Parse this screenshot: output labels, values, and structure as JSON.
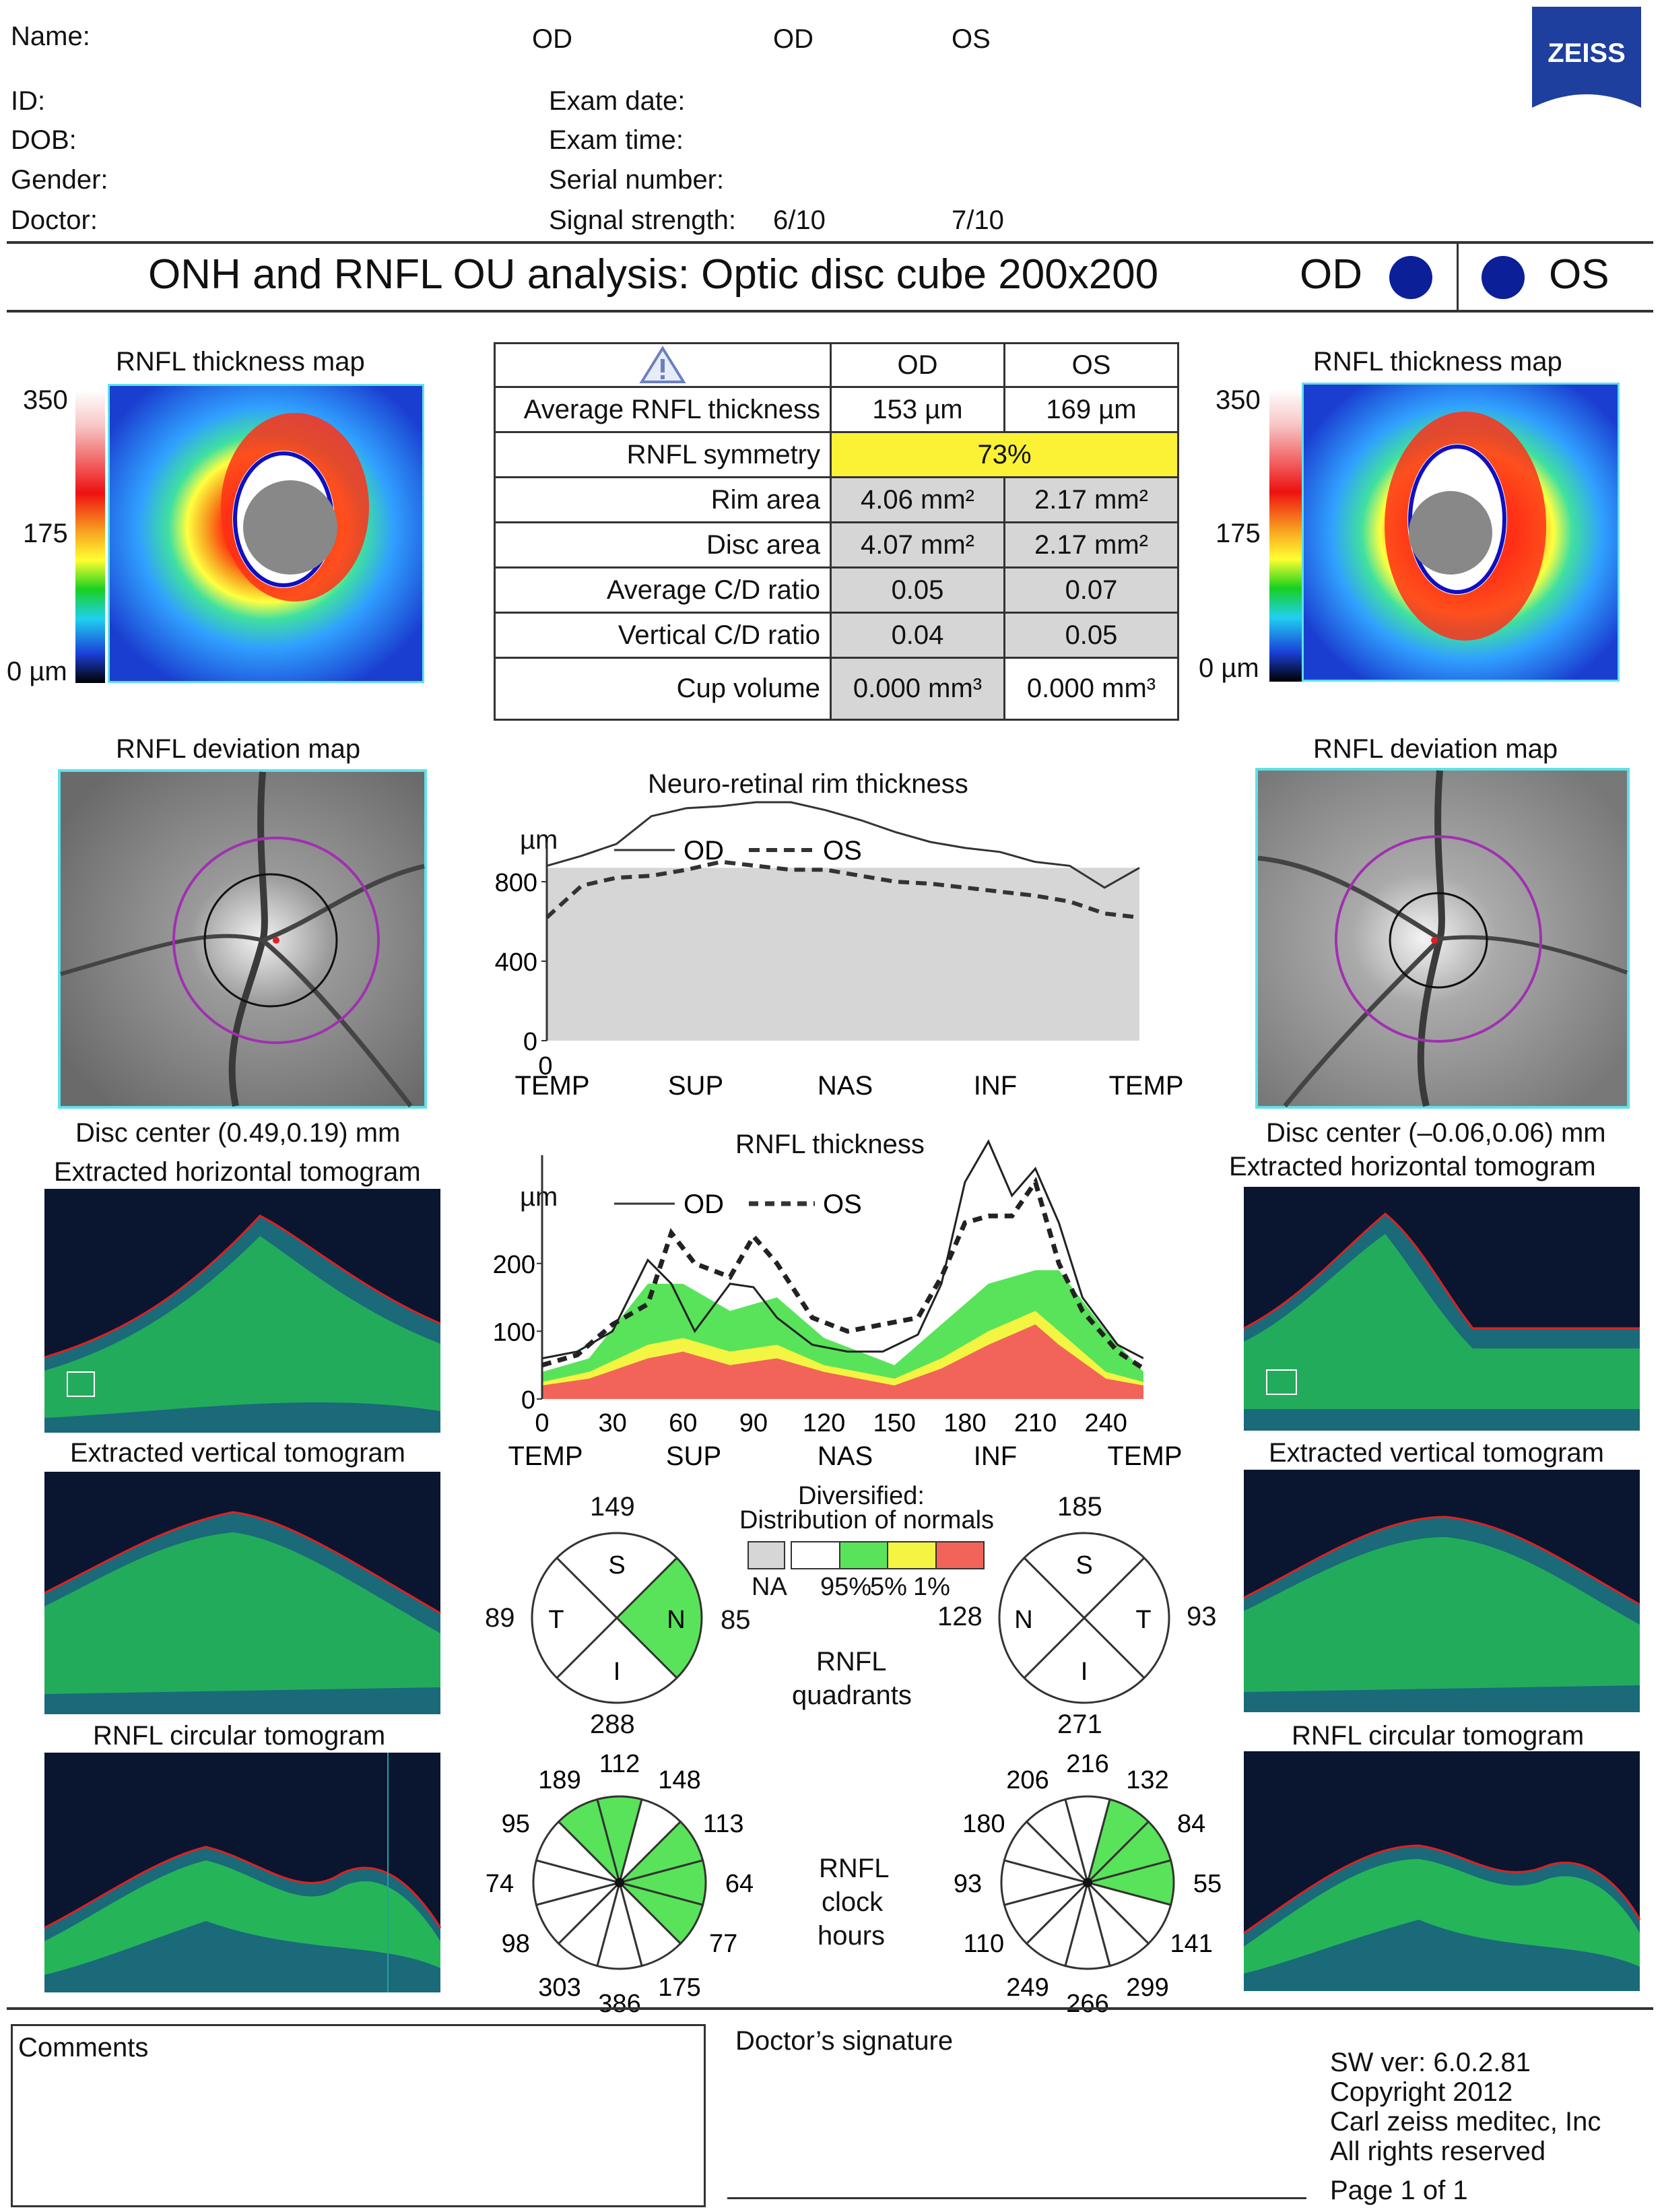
{
  "header": {
    "name_label": "Name:",
    "id_label": "ID:",
    "dob_label": "DOB:",
    "gender_label": "Gender:",
    "doctor_label": "Doctor:",
    "od_label_1": "OD",
    "od_label_2": "OD",
    "os_label": "OS",
    "exam_date_label": "Exam date:",
    "exam_time_label": "Exam time:",
    "serial_label": "Serial number:",
    "signal_label": "Signal strength:",
    "signal_od": "6/10",
    "signal_os": "7/10",
    "logo_text": "ZEISS"
  },
  "title": {
    "text": "ONH  and RNFL OU analysis: Optic disc cube 200x200",
    "od": "OD",
    "os": "OS"
  },
  "left": {
    "thickness_map_title": "RNFL thickness map",
    "scale_top": "350",
    "scale_mid": "175",
    "scale_bottom": "0 µm",
    "deviation_map_title": "RNFL deviation map",
    "disc_center": "Disc center (0.49,0.19) mm",
    "horizontal_title": "Extracted horizontal tomogram",
    "vertical_title": "Extracted vertical tomogram",
    "circular_title": "RNFL circular tomogram"
  },
  "right": {
    "thickness_map_title": "RNFL thickness map",
    "scale_top": "350",
    "scale_mid": "175",
    "scale_bottom": "0 µm",
    "deviation_map_title": "RNFL deviation map",
    "disc_center": "Disc center (–0.06,0.06) mm",
    "horizontal_title": "Extracted horizontal tomogram",
    "vertical_title": "Extracted vertical tomogram",
    "circular_title": "RNFL circular tomogram"
  },
  "table": {
    "col_od": "OD",
    "col_os": "OS",
    "rows": [
      {
        "label": "Average RNFL thickness",
        "od": "153 µm",
        "os": "169 µm"
      },
      {
        "label": "RNFL symmetry",
        "merged": "73%"
      },
      {
        "label": "Rim area",
        "od": "4.06 mm²",
        "os": "2.17 mm²"
      },
      {
        "label": "Disc area",
        "od": "4.07 mm²",
        "os": "2.17 mm²"
      },
      {
        "label": "Average C/D ratio",
        "od": "0.05",
        "os": "0.07"
      },
      {
        "label": "Vertical C/D ratio",
        "od": "0.04",
        "os": "0.05"
      },
      {
        "label": "Cup volume",
        "od": "0.000 mm³",
        "os": "0.000 mm³"
      }
    ]
  },
  "chart_data": [
    {
      "type": "line",
      "title": "Neuro-retinal rim thickness",
      "ylabel": "µm",
      "ylim": [
        0,
        1200
      ],
      "yticks": [
        "800",
        "400",
        "0"
      ],
      "x_origin_label": "0",
      "xticks": [
        "TEMP",
        "SUP",
        "NAS",
        "INF",
        "TEMP"
      ],
      "x": [
        0,
        15,
        30,
        45,
        60,
        75,
        90,
        105,
        120,
        135,
        150,
        165,
        180,
        195,
        210,
        225,
        240,
        255
      ],
      "series": [
        {
          "name": "OD",
          "style": "solid",
          "values": [
            880,
            930,
            990,
            1130,
            1170,
            1180,
            1200,
            1200,
            1160,
            1110,
            1050,
            1000,
            970,
            950,
            900,
            880,
            770,
            870
          ]
        },
        {
          "name": "OS",
          "style": "dashed",
          "values": [
            620,
            780,
            820,
            830,
            860,
            900,
            880,
            860,
            860,
            830,
            800,
            790,
            770,
            750,
            730,
            700,
            640,
            620
          ]
        }
      ],
      "normal_band_top": 870
    },
    {
      "type": "line",
      "title": "RNFL thickness",
      "ylabel": "µm",
      "ylim": [
        0,
        350
      ],
      "yticks": [
        "200",
        "100",
        "0"
      ],
      "xticks_numeric": [
        "0",
        "30",
        "60",
        "90",
        "120",
        "150",
        "180",
        "210",
        "240"
      ],
      "xticks": [
        "TEMP",
        "SUP",
        "NAS",
        "INF",
        "TEMP"
      ],
      "x": [
        0,
        15,
        30,
        45,
        55,
        65,
        80,
        90,
        100,
        115,
        130,
        145,
        160,
        170,
        180,
        190,
        200,
        210,
        220,
        230,
        245,
        256
      ],
      "series": [
        {
          "name": "OD",
          "style": "solid",
          "values": [
            60,
            70,
            100,
            205,
            170,
            100,
            170,
            165,
            120,
            80,
            70,
            70,
            95,
            170,
            320,
            380,
            300,
            340,
            260,
            150,
            80,
            60
          ]
        },
        {
          "name": "OS",
          "style": "dashed",
          "values": [
            50,
            65,
            110,
            140,
            245,
            200,
            180,
            240,
            200,
            120,
            100,
            110,
            120,
            180,
            260,
            270,
            270,
            320,
            200,
            130,
            70,
            45
          ]
        }
      ],
      "legend": [
        "OD",
        "OS"
      ]
    }
  ],
  "legend_normals": {
    "title_1": "Diversified:",
    "title_2": "Distribution of normals",
    "na": "NA",
    "p95": "95%",
    "p5": "5%",
    "p1": "1%",
    "colors": [
      "#d6d6d6",
      "#ffffff",
      "#59e35a",
      "#f4f442",
      "#f2645a"
    ]
  },
  "quadrants": {
    "label_1": "RNFL",
    "label_2": "quadrants",
    "od": {
      "S": "149",
      "T": "89",
      "N": "85",
      "I": "288",
      "letters": [
        "S",
        "T",
        "N",
        "I"
      ]
    },
    "os": {
      "S": "185",
      "N": "128",
      "T": "93",
      "I": "271",
      "letters": [
        "S",
        "N",
        "T",
        "I"
      ]
    }
  },
  "clock": {
    "label_1": "RNFL",
    "label_2": "clock",
    "label_3": "hours",
    "od": [
      "112",
      "148",
      "113",
      "64",
      "77",
      "175",
      "386",
      "303",
      "98",
      "74",
      "95",
      "189"
    ],
    "os": [
      "216",
      "132",
      "84",
      "55",
      "141",
      "299",
      "266",
      "249",
      "110",
      "93",
      "180",
      "206"
    ]
  },
  "footer": {
    "comments_label": "Comments",
    "signature_label": "Doctor’s signature",
    "sw_ver": "SW ver: 6.0.2.81",
    "copyright": "Copyright 2012",
    "company": "Carl zeiss meditec, Inc",
    "rights": "All rights reserved",
    "page": "Page 1 of 1"
  }
}
